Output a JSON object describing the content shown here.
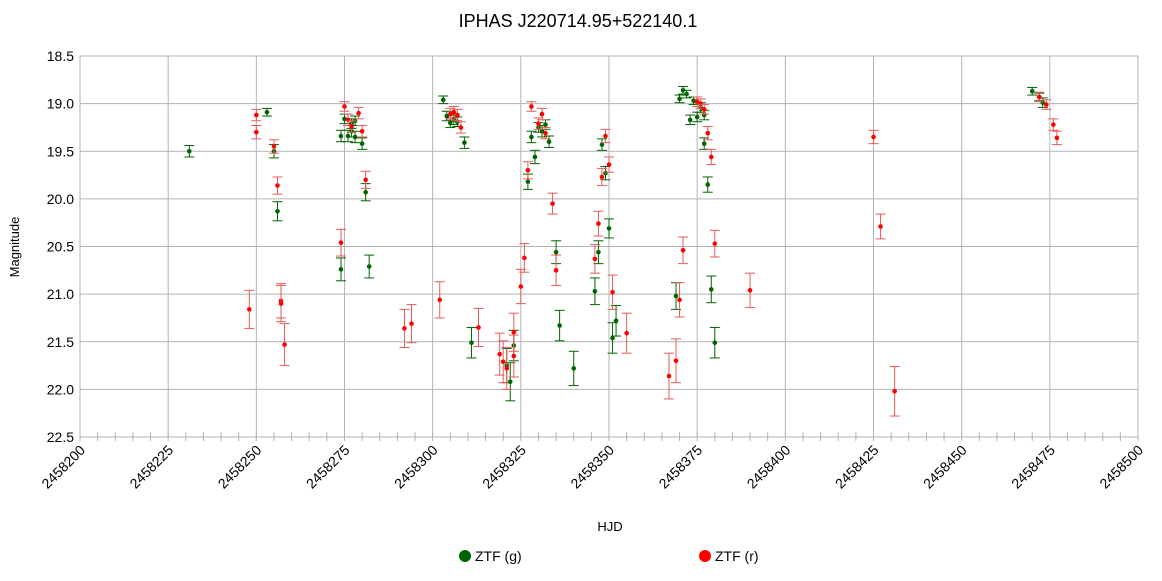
{
  "chart_data": {
    "type": "scatter",
    "title": "IPHAS J220714.95+522140.1",
    "xlabel": "HJD",
    "ylabel": "Magnitude",
    "xlim": [
      2458200,
      2458500
    ],
    "ylim": [
      18.5,
      22.5
    ],
    "y_inverted": true,
    "x_ticks": [
      2458200,
      2458225,
      2458250,
      2458275,
      2458300,
      2458325,
      2458350,
      2458375,
      2458400,
      2458425,
      2458450,
      2458475,
      2458500
    ],
    "x_tick_labels": [
      "2458200",
      "2458225",
      "2458250",
      "2458275",
      "2458300",
      "2458325",
      "2458350",
      "2458375",
      "2458400",
      "2458425",
      "2458450",
      "2458475",
      "2458500"
    ],
    "y_ticks": [
      18.5,
      19.0,
      19.5,
      20.0,
      20.5,
      21.0,
      21.5,
      22.0,
      22.5
    ],
    "y_tick_labels": [
      "18.5",
      "19.0",
      "19.5",
      "20.0",
      "20.5",
      "21.0",
      "21.5",
      "22.0",
      "22.5"
    ],
    "grid": true,
    "legend_position": "bottom",
    "series": [
      {
        "name": "ZTF (g)",
        "color": "#006400",
        "points": [
          [
            2458231,
            19.5,
            0.06
          ],
          [
            2458253,
            19.09,
            0.04
          ],
          [
            2458255,
            19.5,
            0.07
          ],
          [
            2458256,
            20.13,
            0.1
          ],
          [
            2458274,
            19.34,
            0.06
          ],
          [
            2458274,
            20.74,
            0.12
          ],
          [
            2458275,
            19.16,
            0.05
          ],
          [
            2458276,
            19.34,
            0.06
          ],
          [
            2458277,
            19.21,
            0.05
          ],
          [
            2458277,
            19.29,
            0.06
          ],
          [
            2458278,
            19.18,
            0.05
          ],
          [
            2458278,
            19.35,
            0.06
          ],
          [
            2458280,
            19.42,
            0.06
          ],
          [
            2458281,
            19.93,
            0.09
          ],
          [
            2458282,
            20.71,
            0.12
          ],
          [
            2458303,
            18.96,
            0.04
          ],
          [
            2458304,
            19.13,
            0.05
          ],
          [
            2458305,
            19.2,
            0.05
          ],
          [
            2458306,
            19.17,
            0.05
          ],
          [
            2458307,
            19.19,
            0.05
          ],
          [
            2458309,
            19.41,
            0.06
          ],
          [
            2458311,
            21.51,
            0.16
          ],
          [
            2458321,
            21.75,
            0.18
          ],
          [
            2458322,
            21.92,
            0.2
          ],
          [
            2458323,
            21.54,
            0.16
          ],
          [
            2458327,
            19.82,
            0.08
          ],
          [
            2458328,
            19.35,
            0.06
          ],
          [
            2458329,
            19.56,
            0.07
          ],
          [
            2458330,
            19.25,
            0.05
          ],
          [
            2458331,
            19.29,
            0.06
          ],
          [
            2458332,
            19.22,
            0.05
          ],
          [
            2458333,
            19.4,
            0.06
          ],
          [
            2458335,
            20.56,
            0.12
          ],
          [
            2458336,
            21.33,
            0.16
          ],
          [
            2458340,
            21.78,
            0.18
          ],
          [
            2458346,
            20.97,
            0.14
          ],
          [
            2458347,
            20.56,
            0.12
          ],
          [
            2458348,
            19.43,
            0.06
          ],
          [
            2458349,
            19.73,
            0.07
          ],
          [
            2458350,
            20.31,
            0.1
          ],
          [
            2458351,
            21.46,
            0.16
          ],
          [
            2458352,
            21.28,
            0.16
          ],
          [
            2458369,
            21.02,
            0.14
          ],
          [
            2458370,
            18.95,
            0.04
          ],
          [
            2458371,
            18.86,
            0.04
          ],
          [
            2458372,
            18.9,
            0.04
          ],
          [
            2458373,
            19.17,
            0.05
          ],
          [
            2458374,
            18.97,
            0.04
          ],
          [
            2458375,
            19.14,
            0.05
          ],
          [
            2458376,
            19.04,
            0.05
          ],
          [
            2458377,
            19.12,
            0.05
          ],
          [
            2458377,
            19.42,
            0.06
          ],
          [
            2458378,
            19.85,
            0.08
          ],
          [
            2458379,
            20.95,
            0.14
          ],
          [
            2458380,
            21.51,
            0.16
          ],
          [
            2458470,
            18.87,
            0.04
          ],
          [
            2458472,
            18.93,
            0.04
          ],
          [
            2458473,
            18.99,
            0.05
          ]
        ]
      },
      {
        "name": "ZTF (r)",
        "color": "#ff0000",
        "points": [
          [
            2458248,
            21.16,
            0.2
          ],
          [
            2458250,
            19.12,
            0.06
          ],
          [
            2458250,
            19.3,
            0.07
          ],
          [
            2458255,
            19.45,
            0.07
          ],
          [
            2458256,
            19.86,
            0.09
          ],
          [
            2458257,
            21.07,
            0.18
          ],
          [
            2458257,
            21.1,
            0.19
          ],
          [
            2458258,
            21.53,
            0.22
          ],
          [
            2458274,
            20.46,
            0.14
          ],
          [
            2458275,
            19.03,
            0.05
          ],
          [
            2458276,
            19.17,
            0.06
          ],
          [
            2458277,
            19.24,
            0.06
          ],
          [
            2458279,
            19.1,
            0.06
          ],
          [
            2458280,
            19.29,
            0.06
          ],
          [
            2458281,
            19.8,
            0.09
          ],
          [
            2458292,
            21.36,
            0.2
          ],
          [
            2458294,
            21.31,
            0.2
          ],
          [
            2458302,
            21.06,
            0.19
          ],
          [
            2458305,
            19.11,
            0.06
          ],
          [
            2458306,
            19.09,
            0.06
          ],
          [
            2458307,
            19.12,
            0.06
          ],
          [
            2458308,
            19.25,
            0.06
          ],
          [
            2458313,
            21.35,
            0.2
          ],
          [
            2458319,
            21.63,
            0.22
          ],
          [
            2458320,
            21.71,
            0.22
          ],
          [
            2458321,
            21.78,
            0.22
          ],
          [
            2458323,
            21.65,
            0.22
          ],
          [
            2458323,
            21.4,
            0.2
          ],
          [
            2458325,
            20.92,
            0.18
          ],
          [
            2458326,
            20.62,
            0.15
          ],
          [
            2458327,
            19.7,
            0.09
          ],
          [
            2458328,
            19.03,
            0.05
          ],
          [
            2458330,
            19.21,
            0.06
          ],
          [
            2458331,
            19.11,
            0.06
          ],
          [
            2458332,
            19.31,
            0.06
          ],
          [
            2458334,
            20.05,
            0.11
          ],
          [
            2458335,
            20.75,
            0.16
          ],
          [
            2458346,
            20.63,
            0.15
          ],
          [
            2458347,
            20.26,
            0.13
          ],
          [
            2458348,
            19.77,
            0.09
          ],
          [
            2458349,
            19.34,
            0.07
          ],
          [
            2458350,
            19.64,
            0.08
          ],
          [
            2458351,
            20.98,
            0.18
          ],
          [
            2458355,
            21.41,
            0.21
          ],
          [
            2458367,
            21.86,
            0.24
          ],
          [
            2458369,
            21.7,
            0.23
          ],
          [
            2458370,
            21.06,
            0.18
          ],
          [
            2458371,
            20.54,
            0.14
          ],
          [
            2458375,
            18.98,
            0.05
          ],
          [
            2458376,
            19.0,
            0.05
          ],
          [
            2458377,
            19.06,
            0.05
          ],
          [
            2458378,
            19.31,
            0.07
          ],
          [
            2458379,
            19.56,
            0.08
          ],
          [
            2458380,
            20.47,
            0.14
          ],
          [
            2458390,
            20.96,
            0.18
          ],
          [
            2458425,
            19.35,
            0.07
          ],
          [
            2458427,
            20.29,
            0.13
          ],
          [
            2458431,
            22.02,
            0.26
          ],
          [
            2458472,
            18.93,
            0.05
          ],
          [
            2458474,
            19.01,
            0.05
          ],
          [
            2458476,
            19.22,
            0.06
          ],
          [
            2458477,
            19.36,
            0.07
          ]
        ]
      }
    ]
  }
}
